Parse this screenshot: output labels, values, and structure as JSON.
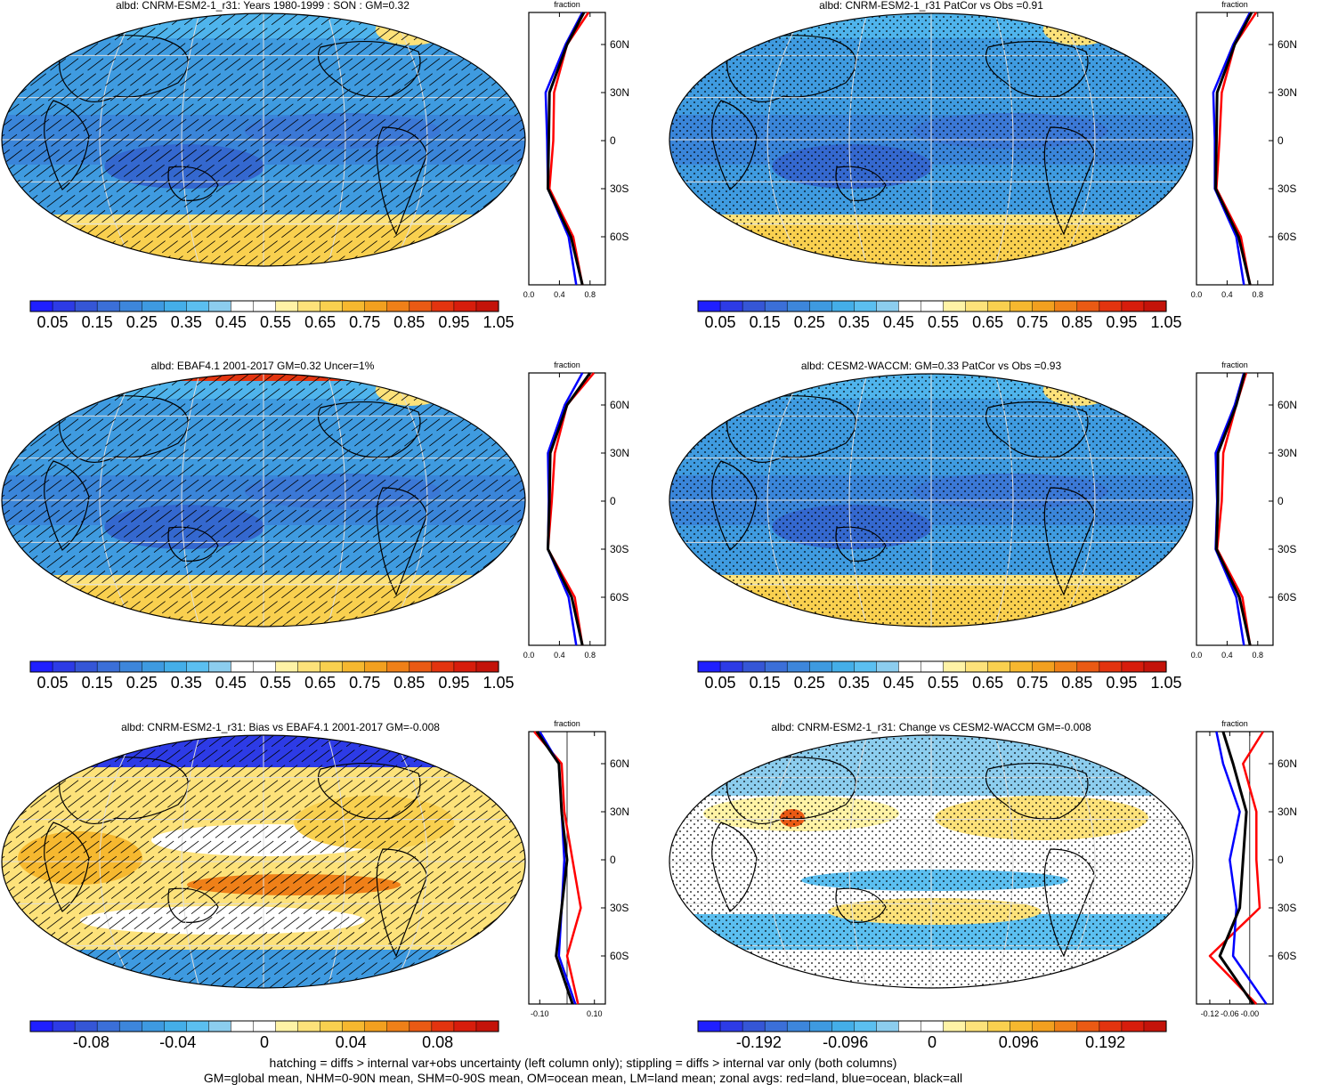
{
  "panels": [
    {
      "title": "albd: CNRM-ESM2-1_r31: Years 1980-1999 : SON : GM=0.32",
      "pattern": "hatch",
      "kind": "abs"
    },
    {
      "title": "albd: CNRM-ESM2-1_r31 PatCor vs Obs =0.91",
      "pattern": "stipple",
      "kind": "abs"
    },
    {
      "title": "albd: EBAF4.1 2001-2017 GM=0.32 Uncer=1%",
      "pattern": "hatch",
      "kind": "abs"
    },
    {
      "title": "albd: CESM2-WACCM: GM=0.33 PatCor vs Obs =0.93",
      "pattern": "stipple",
      "kind": "abs"
    },
    {
      "title": "albd: CNRM-ESM2-1_r31: Bias vs EBAF4.1 2001-2017  GM=-0.008",
      "pattern": "hatch",
      "kind": "bias"
    },
    {
      "title": "albd: CNRM-ESM2-1_r31: Change vs CESM2-WACCM GM=-0.008",
      "pattern": "stipple",
      "kind": "change"
    }
  ],
  "zonal_axis": {
    "title": "fraction",
    "lat_labels": [
      "60N",
      "30N",
      "0",
      "30S",
      "60S"
    ],
    "x_ticks_abs": [
      "0.0",
      "0.4",
      "0.8"
    ],
    "x_ticks_bias": [
      "-0.10",
      "0.10"
    ],
    "x_ticks_change": [
      "-0.12",
      "-0.06",
      "-0.00"
    ]
  },
  "colorbars": {
    "abs": [
      "0.05",
      "0.15",
      "0.25",
      "0.35",
      "0.45",
      "0.55",
      "0.65",
      "0.75",
      "0.85",
      "0.95",
      "1.05"
    ],
    "bias": [
      "-0.08",
      "-0.04",
      "0",
      "0.04",
      "0.08"
    ],
    "change": [
      "-0.192",
      "-0.096",
      "0",
      "0.096",
      "0.192"
    ]
  },
  "palette": [
    "#1f1fff",
    "#2d3be6",
    "#3556d6",
    "#3b6fd8",
    "#3d86db",
    "#3e9ae0",
    "#44aee8",
    "#5bbff0",
    "#8ccdee",
    "#ffffff",
    "#ffffff",
    "#fff3a6",
    "#fde27a",
    "#f9d04f",
    "#f6b82f",
    "#f2a01f",
    "#ef8018",
    "#ea5a14",
    "#e3340f",
    "#d71d0c",
    "#c4130a"
  ],
  "series_colors": {
    "land": "#ff0000",
    "ocean": "#0000ff",
    "all": "#000000"
  },
  "footer": [
    "hatching = diffs > internal var+obs uncertainty (left column only); stippling = diffs > internal var only (both columns)",
    "GM=global mean, NHM=0-90N mean, SHM=0-90S mean, OM=ocean mean, LM=land mean; zonal avgs: red=land, blue=ocean, black=all"
  ],
  "chart_data": [
    {
      "type": "line",
      "title": "albd: CNRM-ESM2-1_r31: Years 1980-1999 : SON : GM=0.32",
      "xlabel": "fraction",
      "xlim": [
        0.0,
        1.0
      ],
      "y": [
        -90,
        -60,
        -30,
        0,
        30,
        60,
        80
      ],
      "series": [
        {
          "name": "land",
          "values": [
            0.7,
            0.58,
            0.27,
            0.32,
            0.33,
            0.5,
            0.78
          ]
        },
        {
          "name": "ocean",
          "values": [
            0.62,
            0.52,
            0.25,
            0.24,
            0.22,
            0.48,
            0.7
          ]
        },
        {
          "name": "all",
          "values": [
            0.7,
            0.55,
            0.25,
            0.26,
            0.27,
            0.5,
            0.72
          ]
        }
      ]
    },
    {
      "type": "line",
      "title": "albd: CNRM-ESM2-1_r31 PatCor vs Obs =0.91",
      "xlabel": "fraction",
      "xlim": [
        0.0,
        1.0
      ],
      "y": [
        -90,
        -60,
        -30,
        0,
        30,
        60,
        80
      ],
      "series": [
        {
          "name": "land",
          "values": [
            0.7,
            0.58,
            0.26,
            0.3,
            0.33,
            0.5,
            0.78
          ]
        },
        {
          "name": "ocean",
          "values": [
            0.62,
            0.52,
            0.24,
            0.24,
            0.22,
            0.48,
            0.7
          ]
        },
        {
          "name": "all",
          "values": [
            0.7,
            0.55,
            0.25,
            0.26,
            0.27,
            0.5,
            0.72
          ]
        }
      ]
    },
    {
      "type": "line",
      "title": "albd: EBAF4.1 2001-2017 GM=0.32 Uncer=1%",
      "xlabel": "fraction",
      "xlim": [
        0.0,
        1.0
      ],
      "y": [
        -90,
        -60,
        -30,
        0,
        30,
        60,
        80
      ],
      "series": [
        {
          "name": "land",
          "values": [
            0.7,
            0.6,
            0.25,
            0.3,
            0.34,
            0.5,
            0.85
          ]
        },
        {
          "name": "ocean",
          "values": [
            0.62,
            0.52,
            0.25,
            0.26,
            0.25,
            0.47,
            0.7
          ]
        },
        {
          "name": "all",
          "values": [
            0.7,
            0.56,
            0.25,
            0.27,
            0.28,
            0.5,
            0.8
          ]
        }
      ]
    },
    {
      "type": "line",
      "title": "albd: CESM2-WACCM: GM=0.33 PatCor vs Obs =0.93",
      "xlabel": "fraction",
      "xlim": [
        0.0,
        1.0
      ],
      "y": [
        -90,
        -60,
        -30,
        0,
        30,
        60,
        80
      ],
      "series": [
        {
          "name": "land",
          "values": [
            0.7,
            0.6,
            0.27,
            0.33,
            0.35,
            0.52,
            0.65
          ]
        },
        {
          "name": "ocean",
          "values": [
            0.62,
            0.52,
            0.25,
            0.27,
            0.25,
            0.5,
            0.62
          ]
        },
        {
          "name": "all",
          "values": [
            0.7,
            0.56,
            0.26,
            0.28,
            0.28,
            0.52,
            0.63
          ]
        }
      ]
    },
    {
      "type": "line",
      "title": "albd: CNRM-ESM2-1_r31: Bias vs EBAF4.1 2001-2017  GM=-0.008",
      "xlabel": "fraction",
      "xlim": [
        -0.14,
        0.14
      ],
      "y": [
        -90,
        -60,
        -30,
        0,
        30,
        60,
        80
      ],
      "series": [
        {
          "name": "land",
          "values": [
            0.04,
            0.0,
            0.05,
            0.02,
            -0.01,
            -0.02,
            -0.12
          ]
        },
        {
          "name": "ocean",
          "values": [
            0.03,
            -0.03,
            -0.02,
            -0.01,
            -0.02,
            -0.03,
            -0.1
          ]
        },
        {
          "name": "all",
          "values": [
            0.02,
            -0.04,
            -0.02,
            0.0,
            -0.02,
            -0.03,
            -0.11
          ]
        }
      ]
    },
    {
      "type": "line",
      "title": "albd: CNRM-ESM2-1_r31: Change vs CESM2-WACCM GM=-0.008",
      "xlabel": "fraction",
      "xlim": [
        -0.16,
        0.07
      ],
      "y": [
        -90,
        -60,
        -30,
        0,
        30,
        60,
        80
      ],
      "series": [
        {
          "name": "land",
          "values": [
            0.02,
            -0.12,
            0.03,
            0.02,
            0.02,
            -0.02,
            0.04
          ]
        },
        {
          "name": "ocean",
          "values": [
            0.05,
            -0.05,
            -0.04,
            -0.06,
            -0.03,
            -0.08,
            -0.1
          ]
        },
        {
          "name": "all",
          "values": [
            0.01,
            -0.09,
            -0.03,
            -0.02,
            -0.01,
            -0.05,
            -0.08
          ]
        }
      ]
    }
  ]
}
